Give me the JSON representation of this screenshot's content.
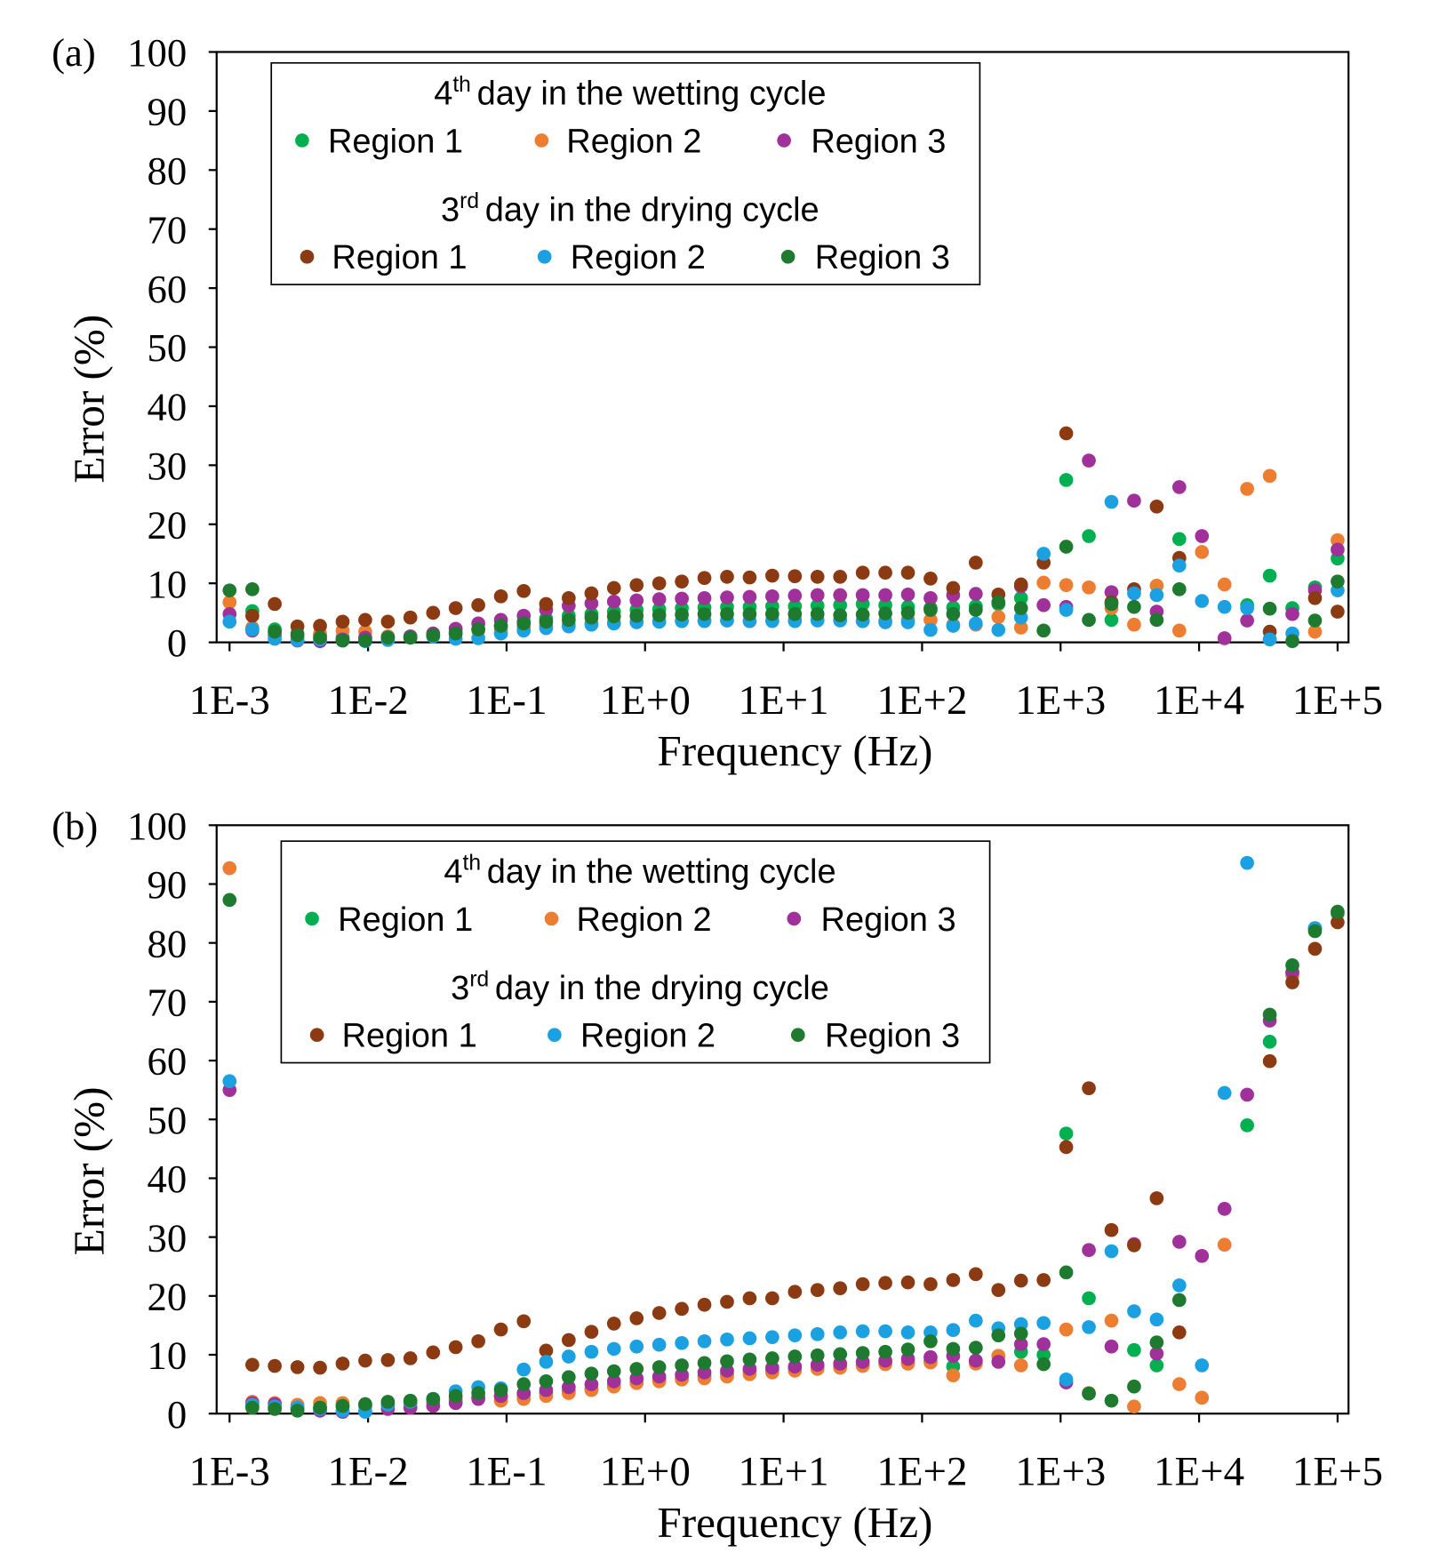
{
  "chart_data": [
    {
      "type": "scatter",
      "panel_label": "(a)",
      "xlabel": "Frequency (Hz)",
      "ylabel": "Error (%)",
      "xscale": "log",
      "grid": false,
      "xlim": [
        0.001,
        100000
      ],
      "ylim": [
        0,
        100
      ],
      "xticks": [
        {
          "value": 0.001,
          "label": "1E-3"
        },
        {
          "value": 0.01,
          "label": "1E-2"
        },
        {
          "value": 0.1,
          "label": "1E-1"
        },
        {
          "value": 1,
          "label": "1E+0"
        },
        {
          "value": 10,
          "label": "1E+1"
        },
        {
          "value": 100,
          "label": "1E+2"
        },
        {
          "value": 1000,
          "label": "1E+3"
        },
        {
          "value": 10000,
          "label": "1E+4"
        },
        {
          "value": 100000,
          "label": "1E+5"
        }
      ],
      "yticks": [
        0,
        10,
        20,
        30,
        40,
        50,
        60,
        70,
        80,
        90,
        100
      ],
      "legend_titles": [
        {
          "number": "4",
          "sup": "th",
          "rest": "day in the wetting cycle"
        },
        {
          "number": "3",
          "sup": "rd",
          "rest": "day in the drying cycle"
        }
      ],
      "x": [
        0.001,
        0.00146,
        0.00212,
        0.00309,
        0.0045,
        0.00655,
        0.00954,
        0.0139,
        0.0202,
        0.0295,
        0.0429,
        0.0625,
        0.091,
        0.133,
        0.193,
        0.281,
        0.41,
        0.596,
        0.869,
        1.265,
        1.842,
        2.683,
        3.907,
        5.69,
        8.286,
        12.07,
        17.57,
        25.6,
        37.28,
        54.29,
        79.07,
        115.1,
        167.7,
        244.2,
        355.6,
        517.9,
        754.3,
        1098,
        1600,
        2330,
        3393,
        4941,
        7197,
        10481,
        15264,
        22230,
        32375,
        47149,
        68665,
        100000
      ],
      "series": [
        {
          "name": "Region 1",
          "color": "#00b050",
          "values": [
            null,
            5.3,
            2.2,
            1.5,
            1.2,
            0.8,
            0.6,
            1.0,
            1.0,
            1.3,
            1.8,
            2.2,
            2.8,
            3.5,
            4.0,
            4.5,
            4.8,
            5.2,
            5.5,
            5.6,
            5.8,
            5.9,
            6.0,
            6.0,
            6.1,
            6.1,
            6.2,
            6.3,
            6.5,
            6.3,
            6.0,
            5.8,
            5.9,
            6.1,
            6.5,
            7.5,
            null,
            27.5,
            18.0,
            3.8,
            null,
            null,
            17.5,
            null,
            null,
            6.3,
            11.3,
            5.8,
            9.3,
            14.2
          ]
        },
        {
          "name": "Region 2",
          "color": "#ed7d31",
          "values": [
            6.8,
            2.5,
            1.5,
            1.0,
            1.5,
            2.0,
            1.8,
            1.0,
            0.8,
            1.2,
            1.5,
            2.0,
            2.2,
            2.5,
            2.8,
            3.0,
            3.2,
            3.3,
            3.5,
            3.5,
            3.6,
            3.7,
            3.7,
            3.6,
            3.7,
            3.8,
            3.8,
            3.8,
            3.6,
            3.7,
            3.8,
            3.8,
            3.0,
            3.0,
            4.3,
            2.5,
            10.1,
            9.7,
            9.3,
            5.8,
            3.0,
            9.6,
            2.0,
            15.3,
            9.8,
            26.0,
            28.2,
            null,
            1.8,
            17.3
          ]
        },
        {
          "name": "Region 3",
          "color": "#a0309a",
          "values": [
            4.8,
            2.0,
            1.0,
            0.3,
            0.2,
            0.5,
            0.8,
            0.8,
            1.0,
            1.5,
            2.3,
            3.2,
            3.8,
            4.5,
            5.5,
            6.2,
            6.6,
            6.9,
            7.1,
            7.3,
            7.4,
            7.5,
            7.6,
            7.7,
            7.8,
            7.9,
            8.0,
            8.0,
            8.0,
            8.0,
            8.1,
            7.5,
            8.0,
            8.2,
            null,
            9.5,
            6.3,
            6.0,
            30.8,
            8.5,
            24.0,
            5.2,
            26.3,
            18.0,
            0.7,
            3.7,
            0.5,
            4.8,
            8.8,
            15.7
          ]
        },
        {
          "name": "Region 1",
          "color": "#8b3a12",
          "values": [
            null,
            4.5,
            6.5,
            2.7,
            2.8,
            3.5,
            3.8,
            3.5,
            4.2,
            5.0,
            5.8,
            6.3,
            7.8,
            8.7,
            6.5,
            7.5,
            8.3,
            9.2,
            9.7,
            10.0,
            10.3,
            10.9,
            11.1,
            11.0,
            11.3,
            11.2,
            11.1,
            11.1,
            11.8,
            11.8,
            11.8,
            10.8,
            9.2,
            13.5,
            8.1,
            9.8,
            13.5,
            35.4,
            null,
            6.8,
            9.0,
            23.0,
            14.3,
            null,
            null,
            null,
            1.8,
            null,
            7.5,
            5.2
          ]
        },
        {
          "name": "Region 2",
          "color": "#1ba1e2",
          "values": [
            3.5,
            2.2,
            0.6,
            0.4,
            0.5,
            0.3,
            0.2,
            0.4,
            0.8,
            1.0,
            0.6,
            0.7,
            1.5,
            2.0,
            2.4,
            2.7,
            3.0,
            3.2,
            3.4,
            3.5,
            3.6,
            3.6,
            3.7,
            3.6,
            3.6,
            3.6,
            3.7,
            3.7,
            3.6,
            3.4,
            3.4,
            2.1,
            2.8,
            3.2,
            2.1,
            4.2,
            15.0,
            5.5,
            null,
            23.8,
            8.3,
            8.0,
            13.0,
            7.0,
            6.0,
            5.8,
            0.5,
            1.5,
            null,
            8.8
          ]
        },
        {
          "name": "Region 3",
          "color": "#1d7a2f",
          "values": [
            8.8,
            9.0,
            1.8,
            1.2,
            0.8,
            0.3,
            0.3,
            0.8,
            0.8,
            1.2,
            1.5,
            2.2,
            2.8,
            3.2,
            3.5,
            3.8,
            4.2,
            4.4,
            4.5,
            4.6,
            4.7,
            4.8,
            4.8,
            4.8,
            4.8,
            4.8,
            4.8,
            4.6,
            4.7,
            4.9,
            5.0,
            5.5,
            4.8,
            5.5,
            6.8,
            5.8,
            2.0,
            16.2,
            3.8,
            6.5,
            6.0,
            3.8,
            9.0,
            null,
            null,
            null,
            5.7,
            0.2,
            3.7,
            10.3
          ]
        }
      ]
    },
    {
      "type": "scatter",
      "panel_label": "(b)",
      "xlabel": "Frequency (Hz)",
      "ylabel": "Error (%)",
      "xscale": "log",
      "grid": false,
      "xlim": [
        0.001,
        100000
      ],
      "ylim": [
        0,
        100
      ],
      "xticks": [
        {
          "value": 0.001,
          "label": "1E-3"
        },
        {
          "value": 0.01,
          "label": "1E-2"
        },
        {
          "value": 0.1,
          "label": "1E-1"
        },
        {
          "value": 1,
          "label": "1E+0"
        },
        {
          "value": 10,
          "label": "1E+1"
        },
        {
          "value": 100,
          "label": "1E+2"
        },
        {
          "value": 1000,
          "label": "1E+3"
        },
        {
          "value": 10000,
          "label": "1E+4"
        },
        {
          "value": 100000,
          "label": "1E+5"
        }
      ],
      "yticks": [
        0,
        10,
        20,
        30,
        40,
        50,
        60,
        70,
        80,
        90,
        100
      ],
      "legend_titles": [
        {
          "number": "4",
          "sup": "th",
          "rest": "day in the wetting cycle"
        },
        {
          "number": "3",
          "sup": "rd",
          "rest": "day in the drying cycle"
        }
      ],
      "x": [
        0.001,
        0.00146,
        0.00212,
        0.00309,
        0.0045,
        0.00655,
        0.00954,
        0.0139,
        0.0202,
        0.0295,
        0.0429,
        0.0625,
        0.091,
        0.133,
        0.193,
        0.281,
        0.41,
        0.596,
        0.869,
        1.265,
        1.842,
        2.683,
        3.907,
        5.69,
        8.286,
        12.07,
        17.57,
        25.6,
        37.28,
        54.29,
        79.07,
        115.1,
        167.7,
        244.2,
        355.6,
        517.9,
        754.3,
        1098,
        1600,
        2330,
        3393,
        4941,
        7197,
        10481,
        15264,
        22230,
        32375,
        47149,
        68665,
        100000
      ],
      "series": [
        {
          "name": "Region 1",
          "color": "#00b050",
          "values": [
            null,
            1.3,
            1.0,
            0.8,
            1.0,
            1.2,
            1.3,
            1.5,
            1.8,
            2.0,
            2.3,
            2.8,
            3.0,
            3.2,
            3.5,
            3.8,
            4.2,
            4.8,
            5.3,
            5.8,
            6.1,
            6.4,
            6.8,
            7.2,
            7.4,
            7.6,
            7.8,
            8.0,
            8.3,
            8.6,
            8.7,
            9.0,
            8.0,
            9.0,
            9.8,
            10.5,
            10.0,
            47.6,
            19.6,
            null,
            10.8,
            8.2,
            null,
            null,
            null,
            49.0,
            63.2,
            75.0,
            82.5,
            85.0
          ]
        },
        {
          "name": "Region 2",
          "color": "#ed7d31",
          "values": [
            92.7,
            2.0,
            1.8,
            1.5,
            1.8,
            1.8,
            1.6,
            1.8,
            2.0,
            2.3,
            2.5,
            2.8,
            2.2,
            2.5,
            3.0,
            3.5,
            4.0,
            4.6,
            5.2,
            5.5,
            5.8,
            6.0,
            6.3,
            6.7,
            7.0,
            7.3,
            7.6,
            7.8,
            8.1,
            8.4,
            8.5,
            8.7,
            6.5,
            8.5,
            9.8,
            8.2,
            null,
            14.3,
            3.5,
            15.8,
            1.2,
            null,
            5.0,
            2.7,
            28.7,
            null,
            null,
            74.5,
            null,
            null
          ]
        },
        {
          "name": "Region 3",
          "color": "#a0309a",
          "values": [
            55.0,
            1.8,
            1.6,
            1.0,
            0.5,
            0.3,
            0.4,
            0.8,
            1.0,
            1.3,
            1.8,
            2.5,
            3.0,
            3.5,
            4.0,
            4.5,
            5.0,
            5.5,
            6.0,
            6.3,
            6.6,
            7.0,
            7.3,
            7.6,
            7.8,
            8.0,
            8.3,
            8.5,
            8.8,
            9.0,
            9.3,
            9.6,
            9.8,
            9.0,
            8.8,
            11.8,
            11.8,
            5.3,
            27.8,
            11.4,
            28.8,
            10.2,
            29.2,
            26.8,
            34.8,
            54.2,
            66.8,
            75.0,
            82.5,
            null
          ]
        },
        {
          "name": "Region 1",
          "color": "#8b3a12",
          "values": [
            null,
            8.3,
            8.1,
            7.9,
            7.8,
            8.5,
            9.0,
            9.1,
            9.4,
            10.4,
            11.3,
            12.3,
            14.3,
            15.7,
            10.7,
            12.5,
            13.9,
            15.3,
            16.2,
            17.1,
            17.8,
            18.5,
            19.0,
            19.6,
            19.6,
            20.7,
            21.0,
            21.3,
            22.0,
            22.2,
            22.3,
            22.0,
            22.7,
            23.7,
            21.0,
            22.6,
            22.7,
            45.3,
            55.3,
            31.2,
            28.6,
            36.6,
            13.8,
            null,
            null,
            null,
            59.9,
            73.3,
            79.0,
            83.5
          ]
        },
        {
          "name": "Region 2",
          "color": "#1ba1e2",
          "values": [
            56.5,
            1.5,
            1.2,
            1.0,
            0.8,
            0.5,
            0.3,
            1.5,
            2.0,
            2.5,
            3.8,
            4.5,
            4.3,
            7.5,
            8.8,
            9.7,
            10.5,
            11.0,
            11.4,
            11.7,
            12.0,
            12.3,
            12.6,
            12.8,
            13.0,
            13.3,
            13.5,
            13.8,
            14.0,
            14.0,
            13.8,
            13.8,
            14.2,
            15.8,
            14.5,
            15.2,
            15.4,
            5.8,
            14.7,
            27.6,
            17.4,
            16.0,
            21.8,
            8.2,
            54.5,
            93.6,
            null,
            null,
            82.5,
            null
          ]
        },
        {
          "name": "Region 3",
          "color": "#1d7a2f",
          "values": [
            87.3,
            1.0,
            0.8,
            0.5,
            1.0,
            1.3,
            1.6,
            2.0,
            2.2,
            2.5,
            3.0,
            3.5,
            4.0,
            5.0,
            5.5,
            6.2,
            6.8,
            7.2,
            7.6,
            7.9,
            8.2,
            8.6,
            8.9,
            9.2,
            9.4,
            9.7,
            9.9,
            10.1,
            10.3,
            10.5,
            10.9,
            12.3,
            11.0,
            11.2,
            13.3,
            13.6,
            8.4,
            24.0,
            3.4,
            2.2,
            4.6,
            12.1,
            19.3,
            null,
            null,
            null,
            67.8,
            76.2,
            82.0,
            85.3
          ]
        }
      ]
    }
  ]
}
